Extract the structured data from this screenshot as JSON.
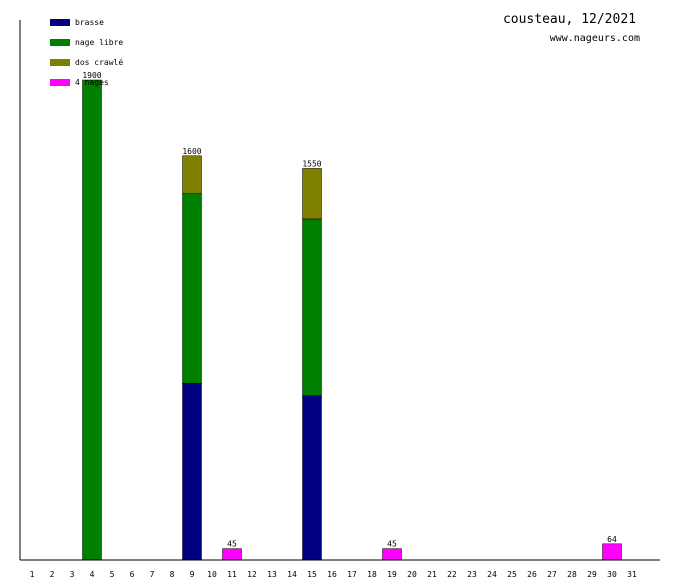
{
  "chart_data": {
    "type": "bar",
    "stacked": true,
    "title": "cousteau, 12/2021",
    "subtitle": "www.nageurs.com",
    "categories": [
      "1",
      "2",
      "3",
      "4",
      "5",
      "6",
      "7",
      "8",
      "9",
      "10",
      "11",
      "12",
      "13",
      "14",
      "15",
      "16",
      "17",
      "18",
      "19",
      "20",
      "21",
      "22",
      "23",
      "24",
      "25",
      "26",
      "27",
      "28",
      "29",
      "30",
      "31"
    ],
    "ylim": [
      0,
      1900
    ],
    "grid": false,
    "legend_position": "top-left",
    "series": [
      {
        "name": "brasse",
        "color": "#000080",
        "values": [
          0,
          0,
          0,
          0,
          0,
          0,
          0,
          0,
          700,
          0,
          0,
          0,
          0,
          0,
          650,
          0,
          0,
          0,
          0,
          0,
          0,
          0,
          0,
          0,
          0,
          0,
          0,
          0,
          0,
          0,
          0
        ]
      },
      {
        "name": "nage libre",
        "color": "#008000",
        "values": [
          0,
          0,
          0,
          1900,
          0,
          0,
          0,
          0,
          750,
          0,
          0,
          0,
          0,
          0,
          700,
          0,
          0,
          0,
          0,
          0,
          0,
          0,
          0,
          0,
          0,
          0,
          0,
          0,
          0,
          0,
          0
        ]
      },
      {
        "name": "dos crawlé",
        "color": "#808000",
        "values": [
          0,
          0,
          0,
          0,
          0,
          0,
          0,
          0,
          150,
          0,
          0,
          0,
          0,
          0,
          200,
          0,
          0,
          0,
          0,
          0,
          0,
          0,
          0,
          0,
          0,
          0,
          0,
          0,
          0,
          0,
          0
        ]
      },
      {
        "name": "4 nages",
        "color": "#ff00ff",
        "values": [
          0,
          0,
          0,
          0,
          0,
          0,
          0,
          0,
          0,
          0,
          45,
          0,
          0,
          0,
          0,
          0,
          0,
          0,
          45,
          0,
          0,
          0,
          0,
          0,
          0,
          0,
          0,
          0,
          0,
          64,
          0
        ]
      }
    ],
    "totals": [
      0,
      0,
      0,
      1900,
      0,
      0,
      0,
      0,
      1600,
      0,
      45,
      0,
      0,
      0,
      1550,
      0,
      0,
      0,
      45,
      0,
      0,
      0,
      0,
      0,
      0,
      0,
      0,
      0,
      0,
      64,
      0
    ]
  }
}
